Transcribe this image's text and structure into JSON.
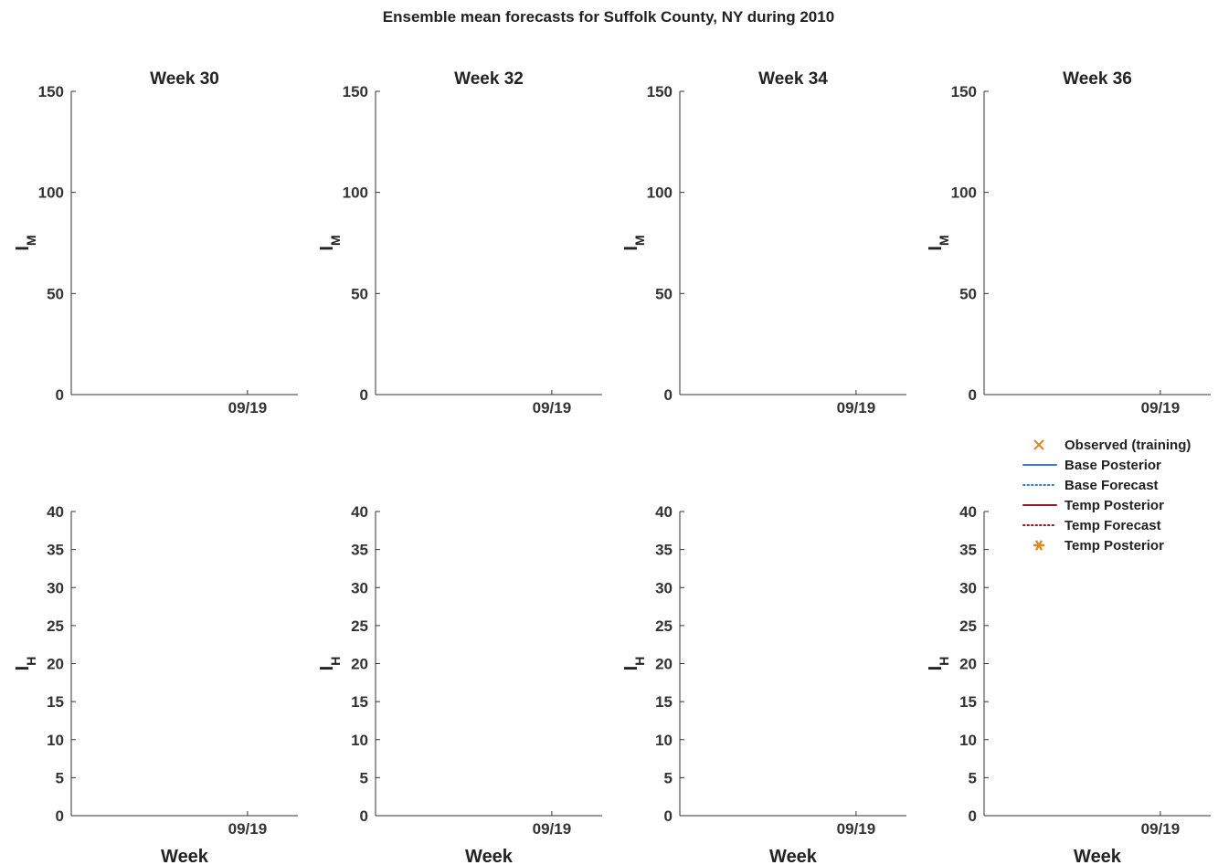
{
  "figure_title": "Ensemble mean forecasts for Suffolk County, NY during 2010",
  "colors": {
    "observed": "#D98A24",
    "base": "#3D7CC9",
    "temp": "#8B1A2B",
    "target": "#4E8A2C",
    "axis": "#333333"
  },
  "x_axis": {
    "label": "Week",
    "tick_label": "09/19",
    "tick_week": 38,
    "range": [
      24,
      42
    ]
  },
  "legend": [
    {
      "label": "Observed (training)",
      "marker": "x",
      "color": "#D98A24"
    },
    {
      "label": "Base Posterior",
      "marker": "solid-line",
      "color": "#3D7CC9"
    },
    {
      "label": "Base Forecast",
      "marker": "dotted-line",
      "color": "#3D7CC9"
    },
    {
      "label": "Temp Posterior",
      "marker": "solid-line",
      "color": "#8B1A2B"
    },
    {
      "label": "Temp Forecast",
      "marker": "dotted-line",
      "color": "#8B1A2B"
    },
    {
      "label": "Temp Posterior",
      "marker": "asterisk",
      "color": "#D98A24"
    }
  ],
  "chart_data": [
    {
      "type": "line",
      "title": "Week 30",
      "ylabel": "I",
      "ylabel_sub": "M",
      "xlabel": "",
      "ylim": [
        0,
        150
      ],
      "yticks": [
        0,
        50,
        100,
        150
      ]
    },
    {
      "type": "line",
      "title": "Week 32",
      "ylabel": "I",
      "ylabel_sub": "M",
      "xlabel": "",
      "ylim": [
        0,
        150
      ],
      "yticks": [
        0,
        50,
        100,
        150
      ]
    },
    {
      "type": "line",
      "title": "Week 34",
      "ylabel": "I",
      "ylabel_sub": "M",
      "xlabel": "",
      "ylim": [
        0,
        150
      ],
      "yticks": [
        0,
        50,
        100,
        150
      ]
    },
    {
      "type": "line",
      "title": "Week 36",
      "ylabel": "I",
      "ylabel_sub": "M",
      "xlabel": "",
      "ylim": [
        0,
        150
      ],
      "yticks": [
        0,
        50,
        100,
        150
      ]
    },
    {
      "type": "line",
      "title": "",
      "ylabel": "I",
      "ylabel_sub": "H",
      "xlabel": "Week",
      "ylim": [
        0,
        40
      ],
      "yticks": [
        0,
        5,
        10,
        15,
        20,
        25,
        30,
        35,
        40
      ]
    },
    {
      "type": "line",
      "title": "",
      "ylabel": "I",
      "ylabel_sub": "H",
      "xlabel": "Week",
      "ylim": [
        0,
        40
      ],
      "yticks": [
        0,
        5,
        10,
        15,
        20,
        25,
        30,
        35,
        40
      ]
    },
    {
      "type": "line",
      "title": "",
      "ylabel": "I",
      "ylabel_sub": "H",
      "xlabel": "Week",
      "ylim": [
        0,
        40
      ],
      "yticks": [
        0,
        5,
        10,
        15,
        20,
        25,
        30,
        35,
        40
      ]
    },
    {
      "type": "line",
      "title": "",
      "ylabel": "I",
      "ylabel_sub": "H",
      "xlabel": "Week",
      "ylim": [
        0,
        40
      ],
      "yticks": [
        0,
        5,
        10,
        15,
        20,
        25,
        30,
        35,
        40
      ]
    }
  ]
}
